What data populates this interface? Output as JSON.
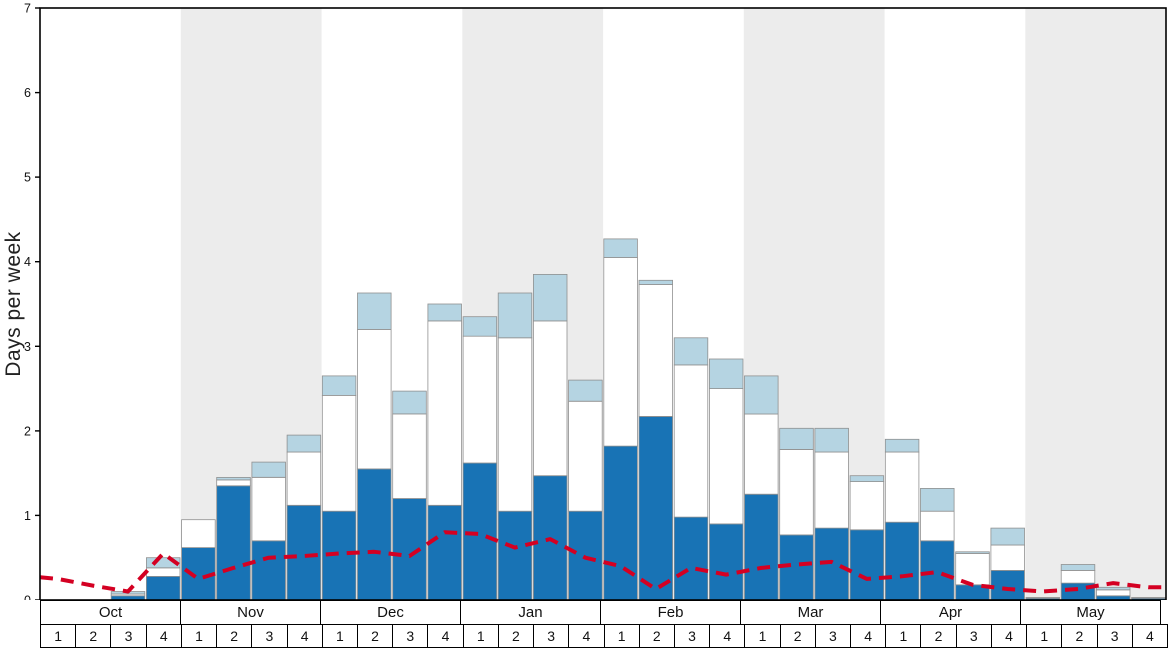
{
  "chart_data": {
    "type": "bar",
    "subtype": "stacked-bars-with-dashed-line-overlay",
    "title": "",
    "xlabel": "",
    "ylabel": "Days per week",
    "ylim": [
      0,
      7
    ],
    "yticks": [
      0,
      1,
      2,
      3,
      4,
      5,
      6,
      7
    ],
    "grid": false,
    "legend": "none",
    "months": [
      "Oct",
      "Nov",
      "Dec",
      "Jan",
      "Feb",
      "Mar",
      "Apr",
      "May"
    ],
    "week_labels": [
      "1",
      "2",
      "3",
      "4"
    ],
    "series": [
      {
        "name": "dark-blue-bar",
        "color": "#1873b5",
        "values": [
          0,
          0,
          0.05,
          0.28,
          0.62,
          1.35,
          0.7,
          1.12,
          1.05,
          1.55,
          1.2,
          1.12,
          1.62,
          1.05,
          1.47,
          1.05,
          1.82,
          2.17,
          0.98,
          0.9,
          1.25,
          0.77,
          0.85,
          0.83,
          0.92,
          0.7,
          0.18,
          0.35,
          0.02,
          0.2,
          0.05,
          0.02
        ]
      },
      {
        "name": "white-bar",
        "color": "#ffffff",
        "values": [
          0,
          0,
          0.02,
          0.1,
          0.33,
          0.07,
          0.75,
          0.63,
          1.37,
          1.65,
          1.0,
          2.18,
          1.5,
          2.05,
          1.83,
          1.3,
          2.23,
          1.56,
          1.8,
          1.6,
          0.95,
          1.01,
          0.9,
          0.57,
          0.83,
          0.35,
          0.37,
          0.3,
          0.01,
          0.15,
          0.07,
          0.01
        ]
      },
      {
        "name": "light-blue-bar",
        "color": "#b5d4e2",
        "values": [
          0,
          0,
          0.03,
          0.12,
          0,
          0.03,
          0.18,
          0.2,
          0.23,
          0.43,
          0.27,
          0.2,
          0.23,
          0.53,
          0.55,
          0.25,
          0.22,
          0.05,
          0.32,
          0.35,
          0.45,
          0.25,
          0.28,
          0.07,
          0.15,
          0.27,
          0.02,
          0.2,
          0,
          0.07,
          0.03,
          0
        ]
      }
    ],
    "line_series": {
      "name": "red-dashed-line",
      "color": "#d40022",
      "style": "dashed",
      "edge_start": 0.27,
      "edge_end": 0.15,
      "values": [
        0.25,
        0.17,
        0.1,
        0.55,
        0.25,
        0.38,
        0.5,
        0.52,
        0.55,
        0.57,
        0.52,
        0.8,
        0.78,
        0.62,
        0.72,
        0.5,
        0.4,
        0.13,
        0.38,
        0.3,
        0.38,
        0.42,
        0.45,
        0.25,
        0.28,
        0.33,
        0.18,
        0.13,
        0.1,
        0.13,
        0.2,
        0.15
      ]
    },
    "colors": {
      "band": "#ececec",
      "axis": "#000000",
      "bar_outline": "#909090"
    }
  }
}
